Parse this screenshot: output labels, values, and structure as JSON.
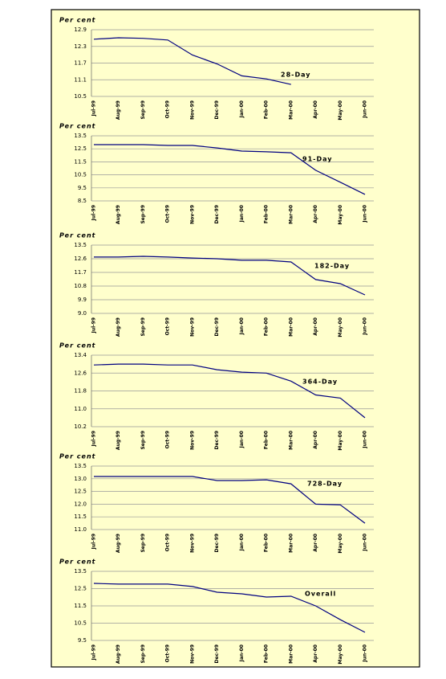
{
  "chart_data": [
    {
      "type": "line",
      "ylabel": "Per cent",
      "categories": [
        "Jul-99",
        "Aug-99",
        "Sep-99",
        "Oct-99",
        "Nov-99",
        "Dec-99",
        "Jan-00",
        "Feb-00",
        "Mar-00",
        "Apr-00",
        "May-00",
        "Jun-00"
      ],
      "series": [
        {
          "name": "28-Day",
          "color": "#000080",
          "values": [
            12.56,
            12.61,
            12.59,
            12.53,
            11.99,
            11.67,
            11.24,
            11.13,
            10.93,
            null,
            null,
            null
          ]
        }
      ],
      "ylim": [
        10.5,
        12.9
      ],
      "yticks": [
        10.5,
        11.1,
        11.7,
        12.3,
        12.9
      ],
      "grid": true
    },
    {
      "type": "line",
      "ylabel": "Per cent",
      "categories": [
        "Jul-99",
        "Aug-99",
        "Sep-99",
        "Oct-99",
        "Nov-99",
        "Dec-99",
        "Jan-00",
        "Feb-00",
        "Mar-00",
        "Apr-00",
        "May-00",
        "Jun-00"
      ],
      "series": [
        {
          "name": "91-Day",
          "color": "#000080",
          "values": [
            12.82,
            12.82,
            12.82,
            12.76,
            12.76,
            12.57,
            12.33,
            12.27,
            12.2,
            10.85,
            9.93,
            9.0
          ]
        }
      ],
      "ylim": [
        8.5,
        13.5
      ],
      "yticks": [
        8.5,
        9.5,
        10.5,
        11.5,
        12.5,
        13.5
      ],
      "grid": true
    },
    {
      "type": "line",
      "ylabel": "Per cent",
      "categories": [
        "Jul-99",
        "Aug-99",
        "Sep-99",
        "Oct-99",
        "Nov-99",
        "Dec-99",
        "Jan-00",
        "Feb-00",
        "Mar-00",
        "Apr-00",
        "May-00",
        "Jun-00"
      ],
      "series": [
        {
          "name": "182-Day",
          "color": "#000080",
          "values": [
            12.71,
            12.71,
            12.76,
            12.71,
            12.65,
            12.6,
            12.5,
            12.5,
            12.39,
            11.23,
            10.96,
            10.22
          ]
        }
      ],
      "ylim": [
        9.0,
        13.5
      ],
      "yticks": [
        {
          "value": 9,
          "label": "9.0"
        },
        9.9,
        10.8,
        11.7,
        12.6,
        13.5
      ],
      "grid": true
    },
    {
      "type": "line",
      "ylabel": "Per cent",
      "categories": [
        "Jul-99",
        "Aug-99",
        "Sep-99",
        "Oct-99",
        "Nov-99",
        "Dec-99",
        "Jan-00",
        "Feb-00",
        "Mar-00",
        "Apr-00",
        "May-00",
        "Jun-00"
      ],
      "series": [
        {
          "name": "364-Day",
          "color": "#000080",
          "values": [
            12.96,
            13.0,
            13.0,
            12.96,
            12.96,
            12.75,
            12.64,
            12.6,
            12.24,
            11.62,
            11.48,
            10.6
          ]
        }
      ],
      "ylim": [
        10.2,
        13.4
      ],
      "yticks": [
        10.2,
        {
          "value": 11,
          "label": "11.0"
        },
        11.8,
        12.6,
        13.4
      ],
      "grid": true
    },
    {
      "type": "line",
      "ylabel": "Per cent",
      "categories": [
        "Jul-99",
        "Aug-99",
        "Sep-99",
        "Oct-99",
        "Nov-99",
        "Dec-99",
        "Jan-00",
        "Feb-00",
        "Mar-00",
        "Apr-00",
        "May-00",
        "Jun-00"
      ],
      "series": [
        {
          "name": "728-Day",
          "color": "#000080",
          "values": [
            13.09,
            13.09,
            13.09,
            13.09,
            13.09,
            12.93,
            12.93,
            12.96,
            12.8,
            12.0,
            11.97,
            11.25
          ]
        }
      ],
      "ylim": [
        11.0,
        13.5
      ],
      "yticks": [
        {
          "value": 11,
          "label": "11.0"
        },
        11.5,
        {
          "value": 12,
          "label": "12.0"
        },
        12.5,
        {
          "value": 13,
          "label": "13.0"
        },
        13.5
      ],
      "grid": true
    },
    {
      "type": "line",
      "ylabel": "Per cent",
      "categories": [
        "Jul-99",
        "Aug-99",
        "Sep-99",
        "Oct-99",
        "Nov-99",
        "Dec-99",
        "Jan-00",
        "Feb-00",
        "Mar-00",
        "Apr-00",
        "May-00",
        "Jun-00"
      ],
      "series": [
        {
          "name": "Overall",
          "color": "#000080",
          "values": [
            12.8,
            12.76,
            12.76,
            12.76,
            12.62,
            12.29,
            12.2,
            12.01,
            12.06,
            11.5,
            10.7,
            9.97
          ]
        }
      ],
      "ylim": [
        9.5,
        13.5
      ],
      "yticks": [
        9.5,
        10.5,
        11.5,
        12.5,
        13.5
      ],
      "grid": true
    }
  ]
}
